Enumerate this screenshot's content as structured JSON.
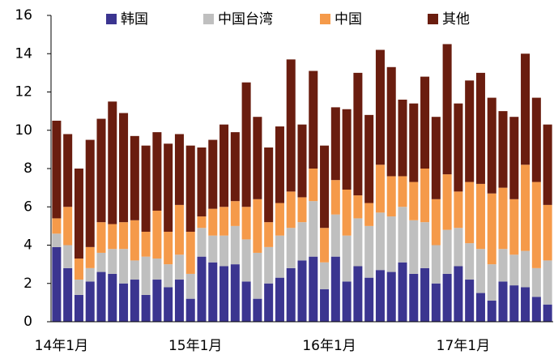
{
  "chart_data": {
    "type": "stacked_bar",
    "categories": [
      "14年1月",
      null,
      null,
      null,
      null,
      null,
      null,
      null,
      null,
      null,
      null,
      null,
      "15年1月",
      null,
      null,
      null,
      null,
      null,
      null,
      null,
      null,
      null,
      null,
      null,
      "16年1月",
      null,
      null,
      null,
      null,
      null,
      null,
      null,
      null,
      null,
      null,
      null,
      "17年1月",
      null,
      null,
      null,
      null,
      null,
      null,
      null,
      null
    ],
    "series": [
      {
        "name": "韩国",
        "color": "#3b3590",
        "values": [
          3.9,
          2.8,
          1.4,
          2.1,
          2.6,
          2.5,
          2.0,
          2.2,
          1.4,
          2.2,
          1.8,
          2.2,
          1.2,
          3.4,
          3.1,
          2.9,
          3.0,
          2.1,
          1.2,
          2.0,
          2.3,
          2.8,
          3.2,
          3.4,
          1.7,
          3.4,
          2.1,
          2.9,
          2.3,
          2.7,
          2.6,
          3.1,
          2.5,
          2.8,
          2.0,
          2.5,
          2.9,
          2.2,
          1.5,
          1.1,
          2.1,
          1.9,
          1.8,
          1.3,
          0.9
        ]
      },
      {
        "name": "中国台湾",
        "color": "#bfbfbf",
        "values": [
          0.7,
          1.2,
          0.8,
          0.7,
          1.0,
          1.3,
          1.8,
          1.0,
          2.0,
          1.1,
          1.2,
          1.3,
          1.3,
          1.5,
          1.4,
          1.6,
          2.0,
          2.2,
          2.4,
          1.9,
          2.2,
          2.1,
          2.0,
          2.9,
          1.4,
          2.2,
          2.4,
          2.5,
          2.7,
          3.0,
          2.9,
          2.9,
          2.8,
          2.4,
          2.0,
          2.3,
          2.0,
          1.9,
          2.3,
          1.9,
          1.7,
          1.6,
          1.9,
          1.5,
          2.3
        ]
      },
      {
        "name": "中国",
        "color": "#f59a4a",
        "values": [
          0.8,
          2.0,
          1.1,
          1.1,
          1.6,
          1.3,
          1.4,
          2.1,
          1.3,
          2.5,
          1.7,
          2.6,
          2.2,
          0.6,
          1.4,
          1.5,
          1.3,
          1.7,
          2.8,
          1.3,
          1.7,
          1.9,
          1.3,
          1.7,
          1.8,
          1.8,
          2.4,
          1.2,
          1.2,
          2.5,
          2.1,
          1.6,
          2.0,
          2.8,
          2.4,
          2.9,
          1.9,
          3.2,
          3.4,
          3.7,
          3.2,
          2.9,
          4.5,
          4.5,
          2.9
        ]
      },
      {
        "name": "其他",
        "color": "#6a1d0f",
        "values": [
          5.1,
          3.8,
          4.7,
          5.6,
          5.4,
          6.4,
          5.7,
          4.4,
          4.5,
          4.1,
          4.6,
          3.7,
          4.5,
          3.6,
          3.6,
          4.3,
          3.6,
          6.5,
          4.3,
          3.9,
          4.0,
          6.9,
          3.8,
          5.1,
          4.3,
          3.8,
          4.2,
          6.4,
          4.6,
          6.0,
          5.7,
          4.0,
          4.1,
          4.8,
          4.3,
          6.8,
          4.6,
          5.3,
          5.8,
          5.0,
          4.0,
          4.3,
          5.8,
          4.4,
          4.2
        ]
      }
    ],
    "ylim": [
      0,
      16
    ],
    "yticks": [
      0,
      2,
      4,
      6,
      8,
      10,
      12,
      14,
      16
    ],
    "grid": false,
    "legend": "top"
  }
}
